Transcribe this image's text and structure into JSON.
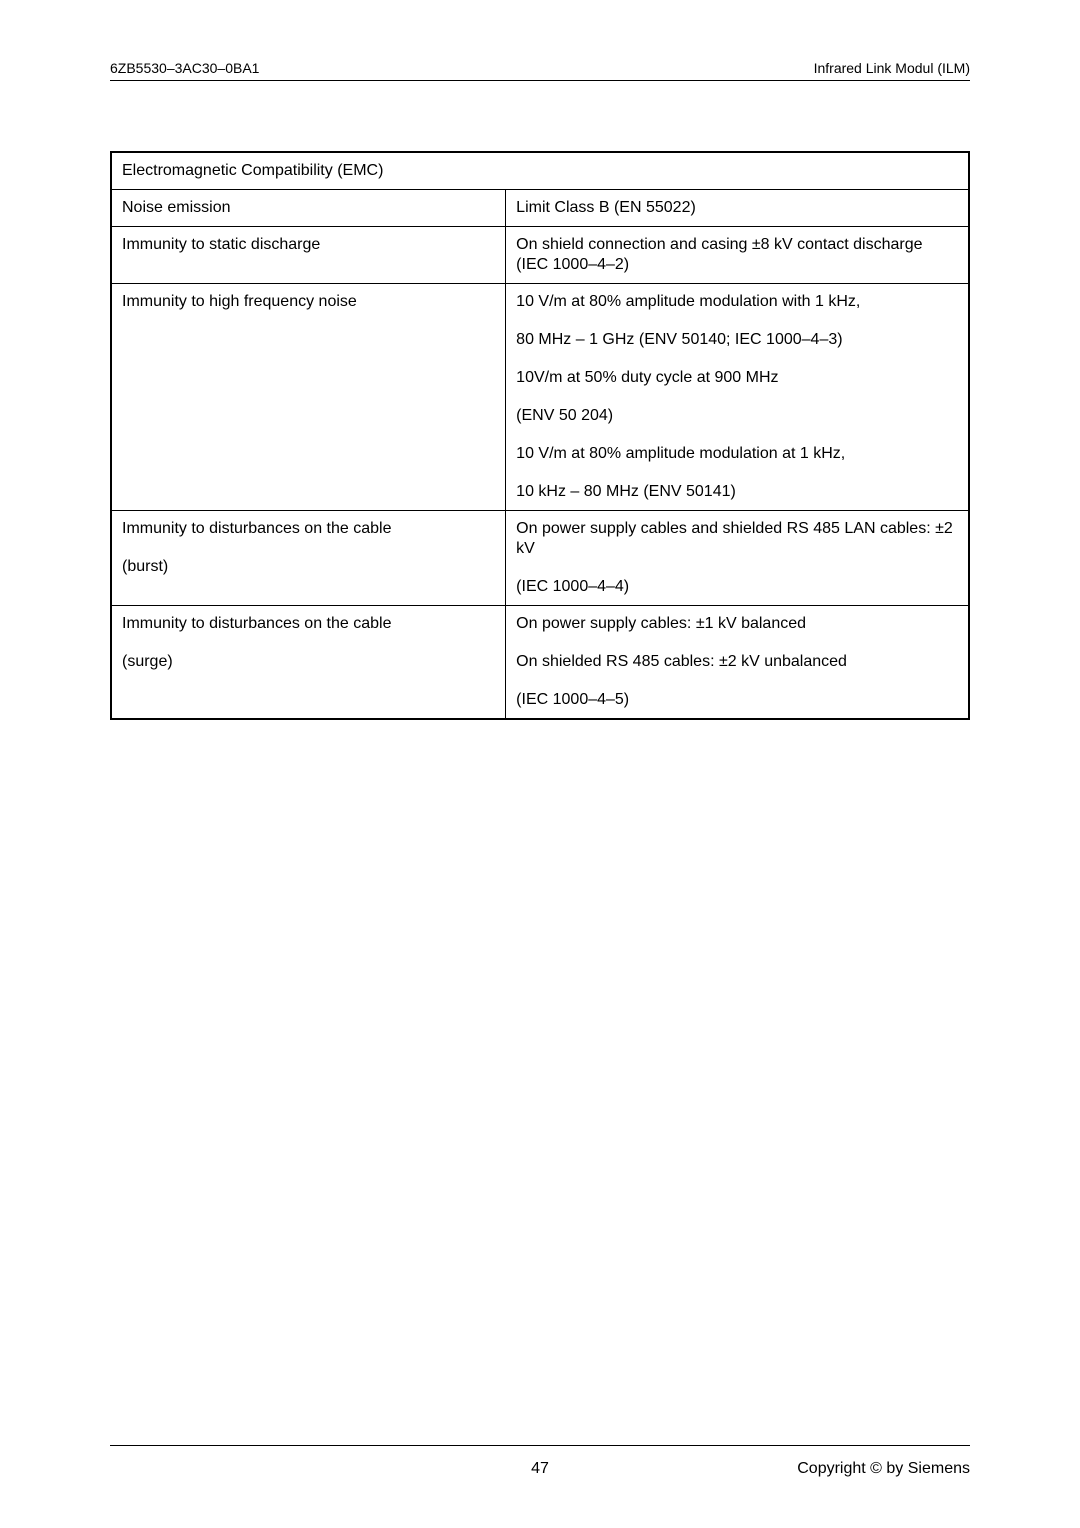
{
  "header": {
    "doc_id": "6ZB5530–3AC30–0BA1",
    "doc_title": "Infrared Link Modul (ILM)"
  },
  "table": {
    "section_title": "Electromagnetic Compatibility (EMC)",
    "rows": [
      {
        "label": "Noise emission",
        "sublabel": "",
        "value_lines": [
          "Limit Class B (EN 55022)"
        ]
      },
      {
        "label": "Immunity to static discharge",
        "sublabel": "",
        "value_lines": [
          "On shield connection and casing ±8 kV contact discharge (IEC 1000–4–2)"
        ]
      },
      {
        "label": "Immunity to high frequency noise",
        "sublabel": "",
        "value_lines": [
          "10 V/m at 80% amplitude modulation with 1 kHz,",
          "80 MHz – 1 GHz (ENV 50140; IEC 1000–4–3)",
          "10V/m at 50% duty cycle at 900 MHz",
          "(ENV 50 204)",
          "10 V/m at 80% amplitude modulation at 1 kHz,",
          "10 kHz – 80 MHz (ENV 50141)"
        ]
      },
      {
        "label": "Immunity to disturbances on the cable",
        "sublabel": "(burst)",
        "value_lines": [
          "On power supply cables and shielded RS 485 LAN cables: ±2 kV",
          "(IEC 1000–4–4)"
        ]
      },
      {
        "label": "Immunity to disturbances on the cable",
        "sublabel": "(surge)",
        "value_lines": [
          "On power supply cables: ±1 kV balanced",
          "On shielded RS 485 cables: ±2 kV unbalanced",
          "(IEC 1000–4–5)"
        ]
      }
    ]
  },
  "footer": {
    "page_number": "47",
    "copyright": "Copyright © by Siemens"
  }
}
